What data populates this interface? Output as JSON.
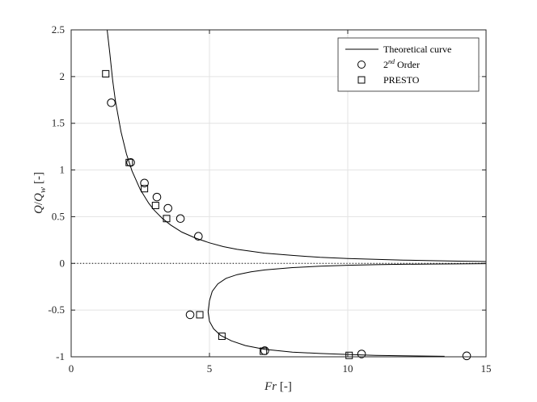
{
  "chart_data": {
    "type": "scatter",
    "xlabel": "Fr [-]",
    "ylabel": "Q/Q_w [-]",
    "xlim": [
      0,
      15
    ],
    "ylim": [
      -1,
      2.5
    ],
    "xticks": [
      0,
      5,
      10,
      15
    ],
    "xtick_labels": [
      "0",
      "5",
      "10",
      "15"
    ],
    "yticks": [
      -1,
      -0.5,
      0,
      0.5,
      1,
      1.5,
      2,
      2.5
    ],
    "ytick_labels": [
      "-1",
      "-0.5",
      "0",
      "0.5",
      "1",
      "1.5",
      "2",
      "2.5"
    ],
    "grid": true,
    "legend_position": "top-right",
    "reference_line": {
      "y": 0,
      "style": "dotted"
    },
    "series": [
      {
        "name": "Theoretical curve",
        "type": "line",
        "color": "#000000",
        "branches": [
          {
            "x": [
              1.3,
              1.4,
              1.5,
              1.6,
              1.8,
              2.0,
              2.2,
              2.5,
              2.8,
              3.0,
              3.3,
              3.6,
              4.0,
              4.5,
              5.0,
              5.5,
              6.0,
              7.0,
              8.0,
              9.0,
              10.0,
              11.0,
              12.0,
              13.0,
              14.0,
              15.0
            ],
            "y": [
              2.5,
              2.24,
              1.96,
              1.74,
              1.41,
              1.17,
              0.99,
              0.79,
              0.645,
              0.57,
              0.48,
              0.41,
              0.335,
              0.27,
              0.22,
              0.18,
              0.15,
              0.11,
              0.085,
              0.065,
              0.052,
              0.043,
              0.035,
              0.029,
              0.024,
              0.02
            ]
          },
          {
            "x": [
              15.0,
              14.0,
              13.0,
              12.0,
              11.0,
              10.0,
              9.0,
              8.0,
              7.0,
              6.5,
              6.0,
              5.6,
              5.3,
              5.1,
              5.0,
              4.95,
              5.0,
              5.15,
              5.4,
              5.8,
              6.3,
              7.0,
              8.0,
              9.0,
              10.0,
              11.0,
              12.0,
              13.5
            ],
            "y": [
              -0.003,
              -0.005,
              -0.007,
              -0.01,
              -0.014,
              -0.02,
              -0.03,
              -0.045,
              -0.07,
              -0.09,
              -0.12,
              -0.16,
              -0.22,
              -0.3,
              -0.4,
              -0.52,
              -0.62,
              -0.7,
              -0.77,
              -0.83,
              -0.88,
              -0.92,
              -0.95,
              -0.965,
              -0.975,
              -0.985,
              -0.99,
              -0.995
            ]
          }
        ]
      },
      {
        "name": "2nd Order",
        "legend_base": "2",
        "legend_sup": "nd",
        "legend_suffix": " Order",
        "type": "scatter",
        "marker": "circle",
        "points": [
          [
            1.45,
            1.72
          ],
          [
            2.15,
            1.08
          ],
          [
            2.65,
            0.86
          ],
          [
            3.1,
            0.71
          ],
          [
            3.5,
            0.59
          ],
          [
            3.95,
            0.48
          ],
          [
            4.6,
            0.29
          ],
          [
            4.3,
            -0.55
          ],
          [
            7.0,
            -0.935
          ],
          [
            10.5,
            -0.97
          ],
          [
            14.3,
            -0.99
          ]
        ]
      },
      {
        "name": "PRESTO",
        "type": "scatter",
        "marker": "square",
        "points": [
          [
            1.25,
            2.03
          ],
          [
            2.1,
            1.08
          ],
          [
            2.65,
            0.8
          ],
          [
            3.05,
            0.62
          ],
          [
            3.45,
            0.48
          ],
          [
            4.65,
            -0.55
          ],
          [
            5.45,
            -0.78
          ],
          [
            6.95,
            -0.94
          ],
          [
            10.05,
            -0.985
          ]
        ]
      }
    ]
  }
}
